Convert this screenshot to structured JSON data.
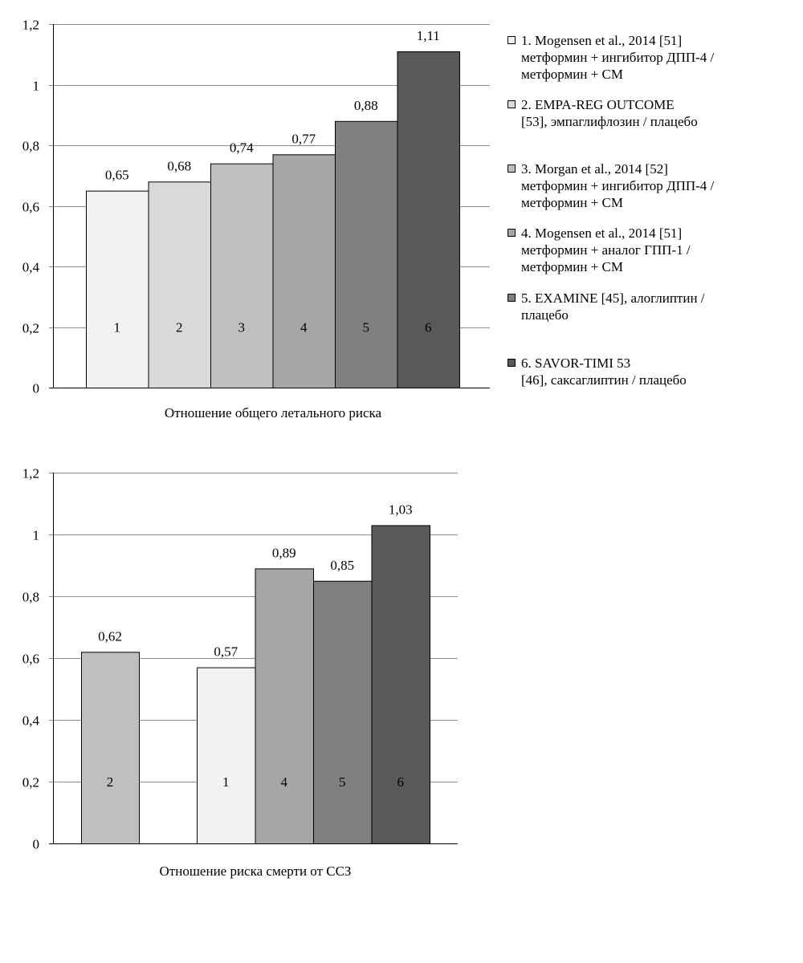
{
  "chart_data": [
    {
      "type": "bar",
      "title": "",
      "xlabel": "Отношение общего летального риска",
      "ylabel": "",
      "ylim": [
        0,
        1.2
      ],
      "yticks": [
        "0",
        "0,2",
        "0,4",
        "0,6",
        "0,8",
        "1",
        "1,2"
      ],
      "grid": true,
      "categories": [
        "1",
        "2",
        "3",
        "4",
        "5",
        "6"
      ],
      "values": [
        0.65,
        0.68,
        0.74,
        0.77,
        0.88,
        1.11
      ],
      "value_labels": [
        "0,65",
        "0,68",
        "0,74",
        "0,77",
        "0,88",
        "1,11"
      ],
      "colors": [
        "#f2f2f2",
        "#d9d9d9",
        "#bfbfbf",
        "#a6a6a6",
        "#808080",
        "#595959"
      ],
      "legend_position": "right"
    },
    {
      "type": "bar",
      "title": "",
      "xlabel": "Отношение риска смерти от ССЗ",
      "ylabel": "",
      "ylim": [
        0,
        1.2
      ],
      "yticks": [
        "0",
        "0,2",
        "0,4",
        "0,6",
        "0,8",
        "1",
        "1,2"
      ],
      "grid": true,
      "groups": [
        {
          "categories": [
            "2"
          ],
          "values": [
            0.62
          ],
          "value_labels": [
            "0,62"
          ],
          "colors": [
            "#bfbfbf"
          ]
        },
        {
          "categories": [
            "1",
            "4",
            "5",
            "6"
          ],
          "values": [
            0.57,
            0.89,
            0.85,
            1.03
          ],
          "value_labels": [
            "0,57",
            "0,89",
            "0,85",
            "1,03"
          ],
          "colors": [
            "#f2f2f2",
            "#a6a6a6",
            "#808080",
            "#595959"
          ]
        }
      ]
    }
  ],
  "legend": [
    {
      "text": "1. Mogensen et al., 2014 [51]\nметформин + ингибитор ДПП-4 /\nметформин + СМ",
      "color": "#f2f2f2"
    },
    {
      "text": "2. EMPA-REG OUTCOME\n[53], эмпаглифлозин / плацебо",
      "color": "#d9d9d9"
    },
    {
      "text": "3. Morgan et al., 2014 [52]\nметформин + ингибитор ДПП-4 /\nметформин + СМ",
      "color": "#bfbfbf"
    },
    {
      "text": "4. Mogensen et al., 2014 [51]\nметформин + аналог ГПП-1 /\nметформин + СМ",
      "color": "#a6a6a6"
    },
    {
      "text": "5. EXAMINE [45], алоглиптин /\nплацебо",
      "color": "#808080"
    },
    {
      "text": "6. SAVOR-TIMI 53\n[46], саксаглиптин / плацебо",
      "color": "#595959"
    }
  ]
}
